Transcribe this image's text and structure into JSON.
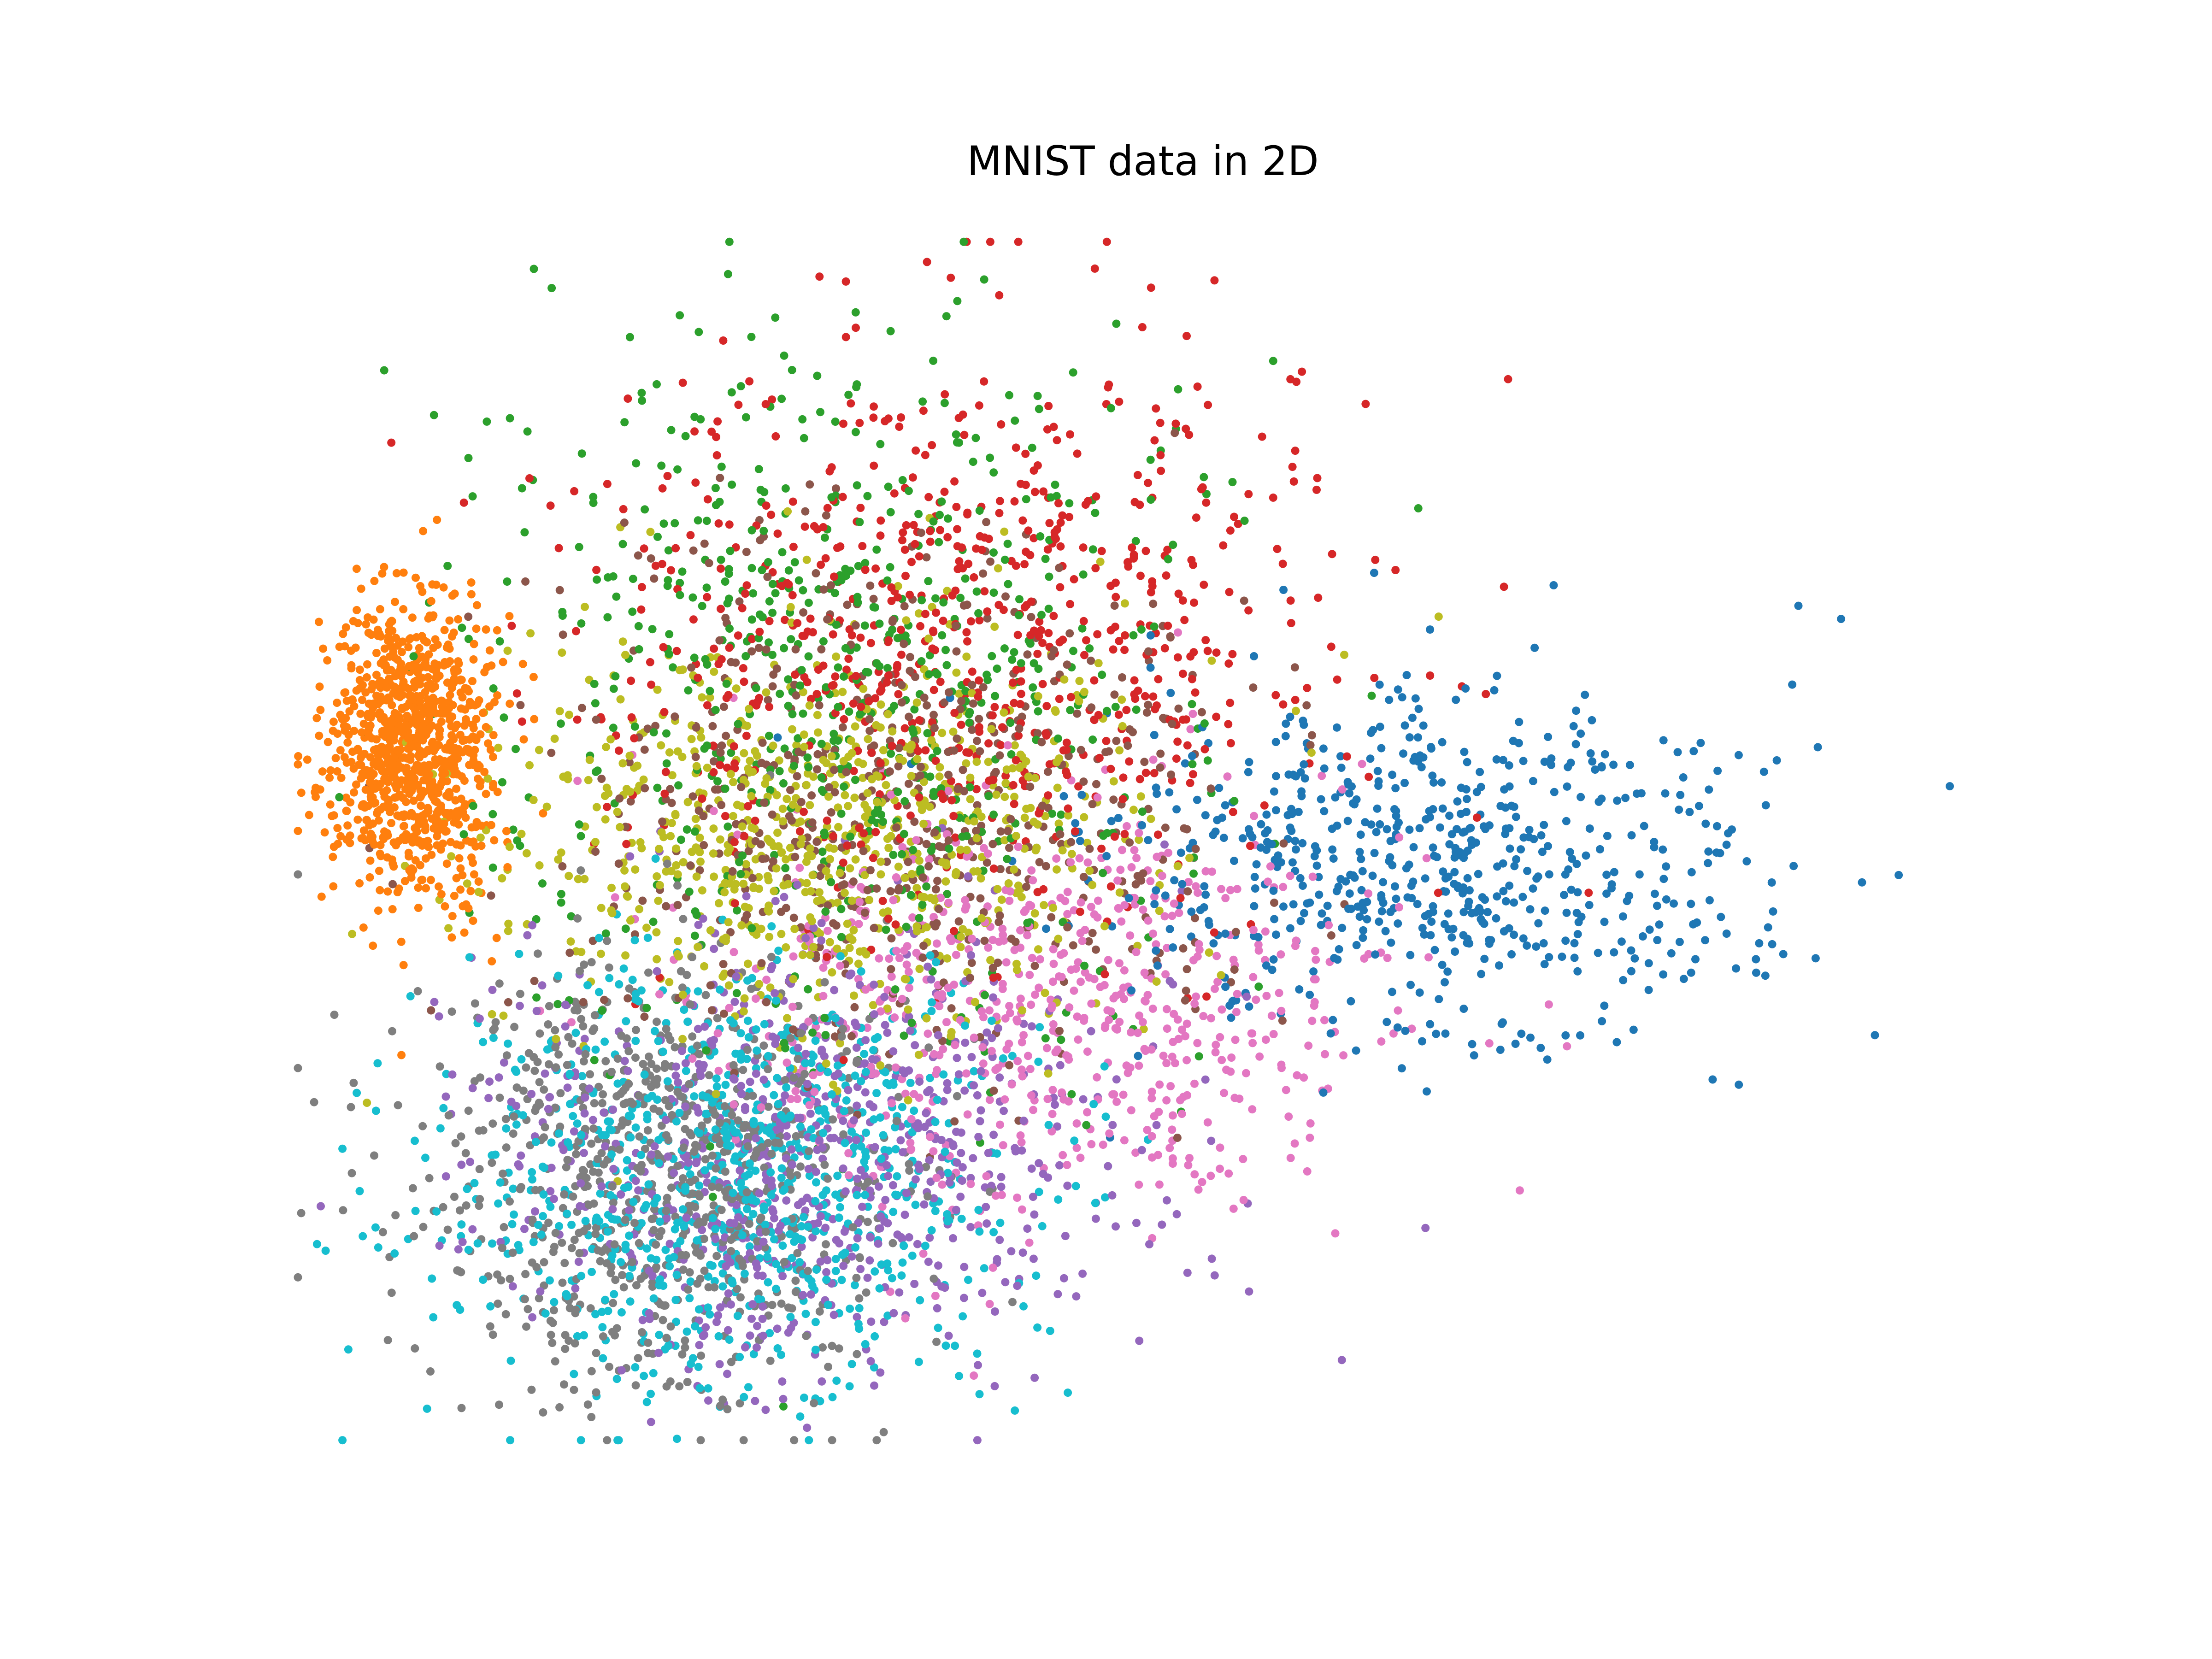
{
  "chart_data": {
    "type": "scatter",
    "title": "MNIST data in 2D",
    "xlabel": "",
    "ylabel": "",
    "axes_visible": false,
    "grid": false,
    "legend": "none",
    "xlim": [
      -9,
      15
    ],
    "ylim": [
      -8,
      10
    ],
    "series": [
      {
        "color": "#1f77b4",
        "cx": 7.2,
        "cy": 0.6,
        "sx": 2.3,
        "sy": 1.3,
        "n": 650
      },
      {
        "color": "#ff7f0e",
        "cx": -7.1,
        "cy": 2.4,
        "sx": 0.55,
        "sy": 1.1,
        "n": 950
      },
      {
        "color": "#2ca02c",
        "cx": -1.0,
        "cy": 3.2,
        "sx": 2.4,
        "sy": 2.6,
        "n": 650
      },
      {
        "color": "#d62728",
        "cx": 0.6,
        "cy": 4.0,
        "sx": 2.6,
        "sy": 2.0,
        "n": 700
      },
      {
        "color": "#9467bd",
        "cx": -1.6,
        "cy": -3.6,
        "sx": 2.2,
        "sy": 1.6,
        "n": 750
      },
      {
        "color": "#8c564b",
        "cx": -0.2,
        "cy": 1.6,
        "sx": 2.4,
        "sy": 1.9,
        "n": 600
      },
      {
        "color": "#e377c2",
        "cx": 1.7,
        "cy": -1.4,
        "sx": 2.4,
        "sy": 1.5,
        "n": 650
      },
      {
        "color": "#7f7f7f",
        "cx": -3.6,
        "cy": -3.8,
        "sx": 1.7,
        "sy": 1.6,
        "n": 800
      },
      {
        "color": "#bcbd22",
        "cx": -1.6,
        "cy": 1.1,
        "sx": 2.3,
        "sy": 1.5,
        "n": 750
      },
      {
        "color": "#17becf",
        "cx": -2.7,
        "cy": -3.9,
        "sx": 1.9,
        "sy": 1.5,
        "n": 850
      }
    ]
  }
}
